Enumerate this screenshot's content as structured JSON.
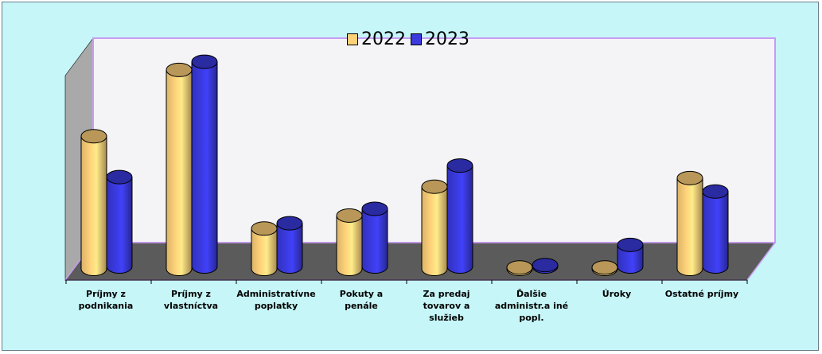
{
  "chart_data": {
    "type": "bar",
    "categories": [
      "Príjmy z podnikania",
      "Príjmy z vlastníctva",
      "Administratívne poplatky",
      "Pokuty a penále",
      "Za predaj tovarov a služieb",
      "Ďalšie administr.a iné popl.",
      "Úroky",
      "Ostatné príjmy"
    ],
    "series": [
      {
        "name": "2022",
        "values": [
          0.92,
          1.38,
          0.28,
          0.37,
          0.57,
          0.01,
          0.01,
          0.63
        ],
        "color": "#ffd27a"
      },
      {
        "name": "2023",
        "values": [
          0.62,
          1.42,
          0.3,
          0.4,
          0.7,
          0.01,
          0.15,
          0.52
        ],
        "color": "#3a3adf"
      }
    ],
    "ylim": [
      0,
      1.6
    ],
    "title": "",
    "xlabel": "",
    "ylabel": "",
    "legend_position": "top-center",
    "grid": false,
    "style": "3d-cylinder"
  },
  "colors": {
    "background": "#c6f6f8",
    "back_wall": "#f4f4f6",
    "floor": "#5b5b5b",
    "side_wall": "#a9a9a9",
    "wall_edge": "#c79cf2"
  }
}
